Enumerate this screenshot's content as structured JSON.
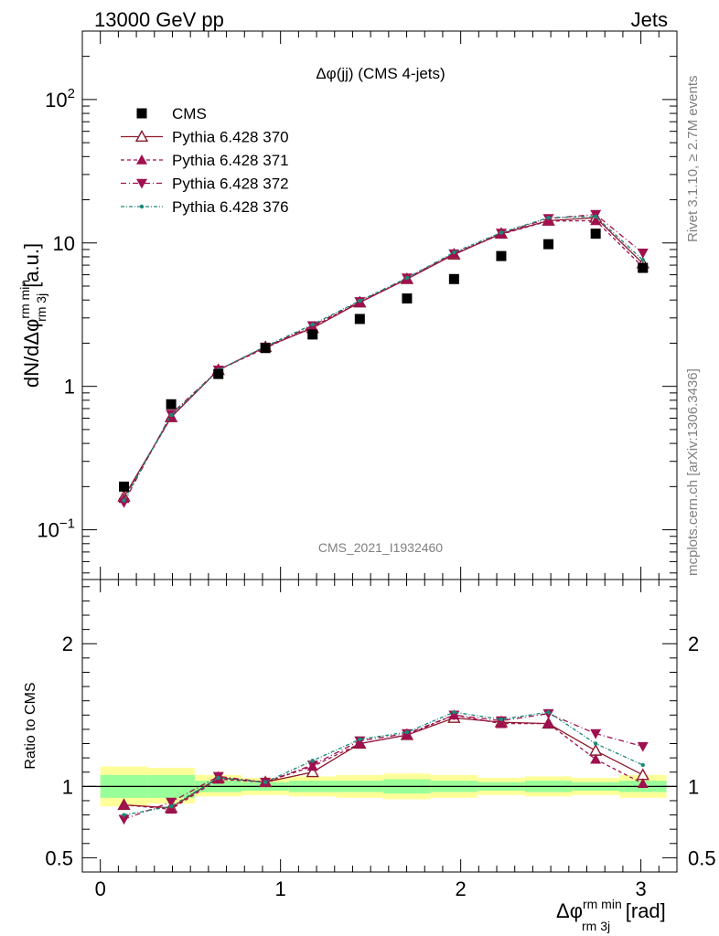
{
  "header": {
    "left": "13000 GeV pp",
    "right": "Jets"
  },
  "plot_title": "Δφ(jj) (CMS 4-jets)",
  "watermark": "CMS_2021_I1932460",
  "side_text": {
    "rivet": "Rivet 3.1.10, ≥ 2.7M events",
    "mcplots": "mcplots.cern.ch [arXiv:1306.3436]"
  },
  "axes": {
    "y_main_label": "dN/dΔφ",
    "y_main_sup": "rm min",
    "y_main_sub": "rm 3j",
    "y_main_unit": "[a.u.]",
    "y_ratio_label": "Ratio to CMS",
    "x_label": "Δφ",
    "x_sup": "rm min",
    "x_sub": "rm 3j",
    "x_unit": "[rad]"
  },
  "legend": [
    {
      "name": "CMS",
      "color": "#000000",
      "marker": "square",
      "dash": ""
    },
    {
      "name": "Pythia 6.428 370",
      "color": "#8b1a2b",
      "marker": "triangle-up-open",
      "dash": ""
    },
    {
      "name": "Pythia 6.428 371",
      "color": "#a0104f",
      "marker": "triangle-up",
      "dash": "4,3"
    },
    {
      "name": "Pythia 6.428 372",
      "color": "#a0104f",
      "marker": "triangle-down",
      "dash": "6,3,1,3"
    },
    {
      "name": "Pythia 6.428 376",
      "color": "#1a8a78",
      "marker": "dot",
      "dash": "4,2,1,2"
    }
  ],
  "chart_data": {
    "type": "line",
    "x_label": "Δφ rm 3j rm min [rad]",
    "xlim": [
      -0.1,
      3.2
    ],
    "main": {
      "scale": "log",
      "ylim": [
        0.045,
        300
      ],
      "yticks": [
        {
          "v": 0.1,
          "label": "10",
          "exp": "−1"
        },
        {
          "v": 1,
          "label": "1"
        },
        {
          "v": 10,
          "label": "10"
        },
        {
          "v": 100,
          "label": "10",
          "exp": "2"
        }
      ]
    },
    "ratio": {
      "ylim": [
        0.4,
        2.45
      ],
      "yticks": [
        0.5,
        1,
        2
      ]
    },
    "xticks": [
      0,
      1,
      2,
      3
    ],
    "bin_edges": [
      0,
      0.262,
      0.524,
      0.785,
      1.047,
      1.309,
      1.571,
      1.833,
      2.094,
      2.356,
      2.618,
      2.88,
      3.142
    ],
    "x": [
      0.131,
      0.393,
      0.655,
      0.916,
      1.178,
      1.44,
      1.702,
      1.963,
      2.225,
      2.487,
      2.749,
      3.011
    ],
    "cms": [
      0.2,
      0.75,
      1.22,
      1.85,
      2.3,
      2.95,
      4.1,
      5.6,
      8.1,
      9.8,
      11.6,
      6.7
    ],
    "series": [
      {
        "name": "Pythia 6.428 370",
        "values": [
          0.17,
          0.61,
          1.3,
          1.88,
          2.55,
          3.85,
          5.6,
          8.3,
          11.6,
          14.3,
          15.0,
          7.2
        ],
        "ratio": [
          0.87,
          0.85,
          1.06,
          1.03,
          1.1,
          1.3,
          1.36,
          1.48,
          1.45,
          1.44,
          1.25,
          1.08
        ]
      },
      {
        "name": "Pythia 6.428 371",
        "values": [
          0.165,
          0.61,
          1.3,
          1.85,
          2.6,
          3.85,
          5.6,
          8.4,
          11.5,
          14.2,
          14.3,
          6.8
        ],
        "ratio": [
          0.87,
          0.84,
          1.05,
          1.03,
          1.14,
          1.3,
          1.36,
          1.5,
          1.44,
          1.44,
          1.19,
          1.02
        ]
      },
      {
        "name": "Pythia 6.428 372",
        "values": [
          0.155,
          0.64,
          1.3,
          1.88,
          2.65,
          3.9,
          5.7,
          8.4,
          11.7,
          14.8,
          15.8,
          8.5
        ],
        "ratio": [
          0.77,
          0.89,
          1.07,
          1.03,
          1.15,
          1.32,
          1.37,
          1.5,
          1.46,
          1.51,
          1.37,
          1.28
        ]
      },
      {
        "name": "Pythia 6.428 376",
        "values": [
          0.16,
          0.63,
          1.3,
          1.9,
          2.7,
          3.95,
          5.7,
          8.6,
          11.8,
          15.0,
          15.3,
          7.6
        ],
        "ratio": [
          0.8,
          0.86,
          1.06,
          1.03,
          1.18,
          1.33,
          1.38,
          1.52,
          1.47,
          1.52,
          1.3,
          1.15
        ]
      }
    ],
    "cms_band_outer": [
      0.86,
      0.88,
      0.93,
      0.94,
      0.93,
      0.92,
      0.91,
      0.92,
      0.94,
      0.93,
      0.94,
      0.92
    ],
    "cms_band_outer_hi": [
      1.14,
      1.13,
      1.08,
      1.06,
      1.07,
      1.08,
      1.09,
      1.08,
      1.06,
      1.07,
      1.06,
      1.08
    ],
    "cms_band_inner": [
      0.92,
      0.92,
      0.96,
      0.97,
      0.96,
      0.96,
      0.95,
      0.96,
      0.97,
      0.96,
      0.97,
      0.96
    ],
    "cms_band_inner_hi": [
      1.08,
      1.08,
      1.04,
      1.03,
      1.04,
      1.04,
      1.05,
      1.04,
      1.03,
      1.04,
      1.03,
      1.04
    ],
    "colors": {
      "band_outer": "#ffff99",
      "band_inner": "#99ff99"
    }
  }
}
